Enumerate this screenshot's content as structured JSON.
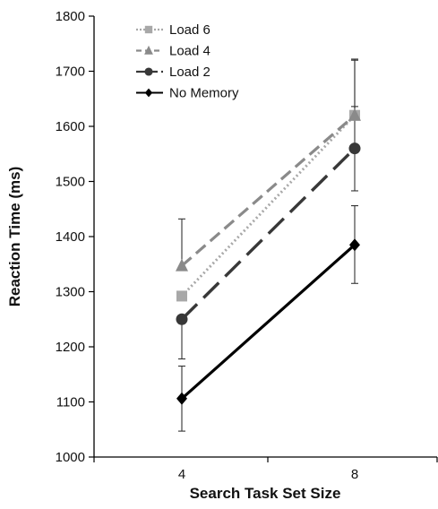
{
  "chart_data": {
    "type": "line",
    "xlabel": "Search Task Set Size",
    "ylabel": "Reaction Time (ms)",
    "x_categories": [
      "4",
      "8"
    ],
    "ylim": [
      1000,
      1800
    ],
    "yticks": [
      1000,
      1100,
      1200,
      1300,
      1400,
      1500,
      1600,
      1700,
      1800
    ],
    "grid": false,
    "legend_position": "top-left",
    "series": [
      {
        "name": "Load 6",
        "values": [
          1292,
          1620
        ],
        "error_upper": [
          1292,
          1720
        ],
        "error_lower": [
          1292,
          1620
        ],
        "color": "#a8a8a8",
        "line_style": "dotted",
        "marker": "square"
      },
      {
        "name": "Load 4",
        "values": [
          1347,
          1620
        ],
        "error_upper": [
          1432,
          1722
        ],
        "error_lower": [
          1347,
          1620
        ],
        "color": "#8a8a8a",
        "line_style": "dashed",
        "marker": "triangle"
      },
      {
        "name": "Load 2",
        "values": [
          1250,
          1560
        ],
        "error_upper": [
          1250,
          1636
        ],
        "error_lower": [
          1178,
          1483
        ],
        "color": "#383838",
        "line_style": "longdash",
        "marker": "circle"
      },
      {
        "name": "No Memory",
        "values": [
          1106,
          1385
        ],
        "error_upper": [
          1165,
          1456
        ],
        "error_lower": [
          1047,
          1315
        ],
        "color": "#000000",
        "line_style": "solid",
        "marker": "diamond"
      }
    ]
  }
}
